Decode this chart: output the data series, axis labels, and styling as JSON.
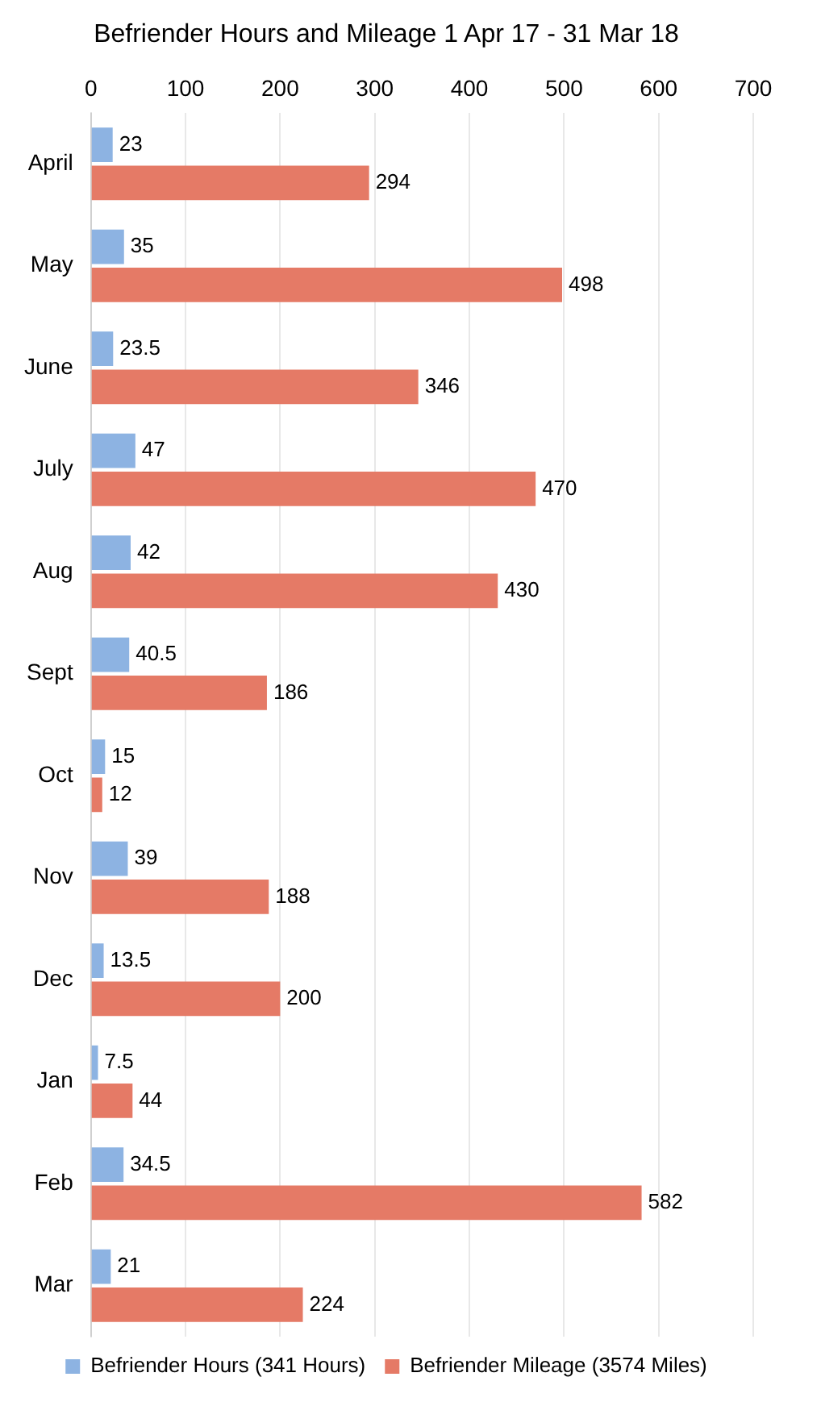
{
  "chart_data": {
    "type": "bar",
    "title": "Befriender Hours and Mileage 1 Apr 17 - 31 Mar 18",
    "orientation": "horizontal",
    "categories": [
      "April",
      "May",
      "June",
      "July",
      "Aug",
      "Sept",
      "Oct",
      "Nov",
      "Dec",
      "Jan",
      "Feb",
      "Mar"
    ],
    "series": [
      {
        "name": "Befriender Hours (341 Hours)",
        "color": "#8db3e2",
        "values": [
          23,
          35,
          23.5,
          47,
          42,
          40.5,
          15,
          39,
          13.5,
          7.5,
          34.5,
          21
        ]
      },
      {
        "name": "Befriender Mileage (3574 Miles)",
        "color": "#e57a66",
        "values": [
          294,
          498,
          346,
          470,
          430,
          186,
          12,
          188,
          200,
          44,
          582,
          224
        ]
      }
    ],
    "xlim": [
      0,
      700
    ],
    "xticks": [
      0,
      100,
      200,
      300,
      400,
      500,
      600,
      700
    ],
    "grid": "x",
    "legend": "bottom",
    "data_labels": true
  }
}
